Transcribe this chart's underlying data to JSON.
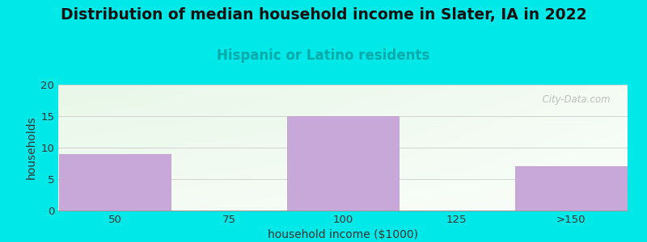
{
  "title": "Distribution of median household income in Slater, IA in 2022",
  "subtitle": "Hispanic or Latino residents",
  "xlabel": "household income ($1000)",
  "ylabel": "households",
  "categories": [
    "50",
    "75",
    "100",
    "125",
    ">150"
  ],
  "values": [
    9,
    0,
    15,
    0,
    7
  ],
  "bar_color": "#c8a8d8",
  "bar_edge_color": "#b898c8",
  "background_color": "#00e8e8",
  "plot_bg_green": "#e8f5e8",
  "plot_bg_white": "#f8f8ff",
  "title_fontsize": 13.5,
  "title_color": "#111111",
  "subtitle_fontsize": 12,
  "subtitle_color": "#00aaaa",
  "ylabel_fontsize": 10,
  "xlabel_fontsize": 10,
  "tick_fontsize": 9.5,
  "ylim": [
    0,
    20
  ],
  "yticks": [
    0,
    5,
    10,
    15,
    20
  ],
  "grid_color": "#cccccc",
  "watermark_text": "  City-Data.com",
  "watermark_color": "#aaaaaa"
}
